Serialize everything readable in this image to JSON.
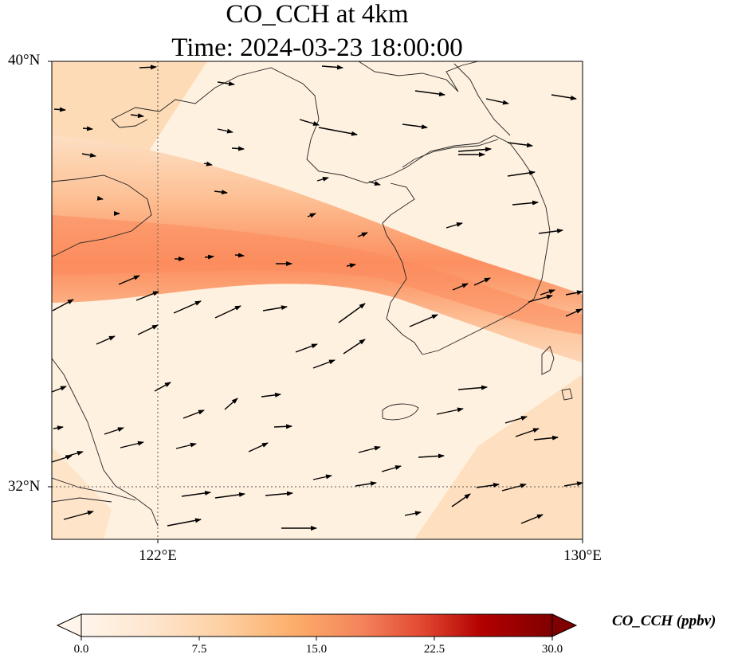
{
  "title_line1": "CO_CCH at 4km",
  "title_line2": "Time: 2024-03-23 18:00:00",
  "map": {
    "lon_range": [
      120,
      130
    ],
    "lat_range": [
      31,
      40
    ],
    "lat_ticks": [
      {
        "value": 40,
        "label": "40°N"
      },
      {
        "value": 32,
        "label": "32°N"
      }
    ],
    "lon_ticks": [
      {
        "value": 122,
        "label": "122°E"
      },
      {
        "value": 130,
        "label": "130°E"
      }
    ],
    "gridlines": "dotted at 122°E and 32°N"
  },
  "colorbar": {
    "label": "CO_CCH (ppbv)",
    "colormap": "Oranges to dark red",
    "range": [
      0,
      30
    ],
    "extend": "both",
    "ticks": [
      "0.0",
      "7.5",
      "15.0",
      "22.5",
      "30.0"
    ]
  },
  "colors": {
    "low": "#fff5eb",
    "mid": "#fdae6b",
    "high": "#7f0000",
    "band_peak": "#fc8d59"
  }
}
